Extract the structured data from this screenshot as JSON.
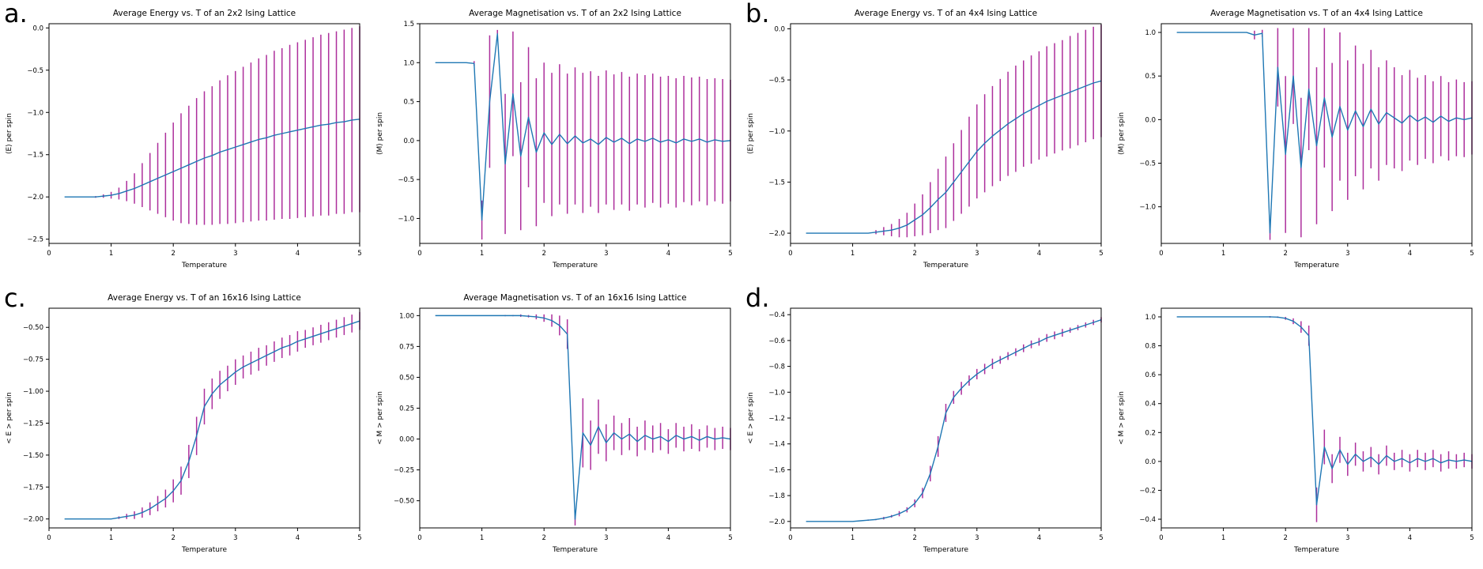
{
  "figure": {
    "description": "Ising model Monte Carlo results: average energy and magnetisation vs temperature with error bars for four lattice sizes"
  },
  "colors": {
    "line": "#1f77b4",
    "errorbar": "#ad2f9c",
    "axis": "#000000",
    "background": "#ffffff"
  },
  "panels": [
    {
      "label": "a."
    },
    {
      "label": "b."
    },
    {
      "label": "c."
    },
    {
      "label": "d."
    }
  ],
  "chart_data": [
    {
      "type": "line",
      "title": "Average Energy vs. T of an 2x2 Ising Lattice",
      "xlabel": "Temperature",
      "ylabel": "⟨E⟩ per spin",
      "legend": null,
      "grid": false,
      "xlim": [
        0,
        5
      ],
      "ylim": [
        -2.55,
        0.05
      ],
      "xticks": [
        0,
        1,
        2,
        3,
        4,
        5
      ],
      "yticks": [
        0.0,
        -0.5,
        -1.0,
        -1.5,
        -2.0,
        -2.5
      ],
      "ydec": 1,
      "x": [
        0.25,
        0.375,
        0.5,
        0.625,
        0.75,
        0.875,
        1.0,
        1.125,
        1.25,
        1.375,
        1.5,
        1.625,
        1.75,
        1.875,
        2.0,
        2.125,
        2.25,
        2.375,
        2.5,
        2.625,
        2.75,
        2.875,
        3.0,
        3.125,
        3.25,
        3.375,
        3.5,
        3.625,
        3.75,
        3.875,
        4.0,
        4.125,
        4.25,
        4.375,
        4.5,
        4.625,
        4.75,
        4.875,
        5.0
      ],
      "y": [
        -2.0,
        -2.0,
        -2.0,
        -2.0,
        -2.0,
        -1.99,
        -1.98,
        -1.96,
        -1.93,
        -1.9,
        -1.86,
        -1.82,
        -1.78,
        -1.74,
        -1.7,
        -1.66,
        -1.62,
        -1.58,
        -1.54,
        -1.51,
        -1.47,
        -1.44,
        -1.41,
        -1.38,
        -1.35,
        -1.32,
        -1.3,
        -1.27,
        -1.25,
        -1.23,
        -1.21,
        -1.19,
        -1.17,
        -1.15,
        -1.14,
        -1.12,
        -1.11,
        -1.09,
        -1.08
      ],
      "yerr": [
        0,
        0,
        0,
        0,
        0.01,
        0.02,
        0.04,
        0.07,
        0.12,
        0.18,
        0.26,
        0.34,
        0.42,
        0.5,
        0.58,
        0.65,
        0.7,
        0.75,
        0.79,
        0.82,
        0.85,
        0.88,
        0.9,
        0.92,
        0.94,
        0.96,
        0.98,
        1.0,
        1.01,
        1.03,
        1.04,
        1.05,
        1.06,
        1.07,
        1.08,
        1.08,
        1.09,
        1.09,
        1.1
      ]
    },
    {
      "type": "line",
      "title": "Average Magnetisation vs. T of an 2x2 Ising Lattice",
      "xlabel": "Temperature",
      "ylabel": "⟨M⟩ per spin",
      "legend": null,
      "grid": false,
      "xlim": [
        0,
        5
      ],
      "ylim": [
        -1.32,
        1.5
      ],
      "xticks": [
        0,
        1,
        2,
        3,
        4,
        5
      ],
      "yticks": [
        1.5,
        1.0,
        0.5,
        0.0,
        -0.5,
        -1.0
      ],
      "ydec": 1,
      "x": [
        0.25,
        0.375,
        0.5,
        0.625,
        0.75,
        0.875,
        1.0,
        1.125,
        1.25,
        1.375,
        1.5,
        1.625,
        1.75,
        1.875,
        2.0,
        2.125,
        2.25,
        2.375,
        2.5,
        2.625,
        2.75,
        2.875,
        3.0,
        3.125,
        3.25,
        3.375,
        3.5,
        3.625,
        3.75,
        3.875,
        4.0,
        4.125,
        4.25,
        4.375,
        4.5,
        4.625,
        4.75,
        4.875,
        5.0
      ],
      "y": [
        1,
        1,
        1,
        1,
        1,
        0.99,
        -1.02,
        0.5,
        1.37,
        -0.3,
        0.6,
        -0.2,
        0.3,
        -0.15,
        0.1,
        -0.05,
        0.08,
        -0.04,
        0.06,
        -0.03,
        0.02,
        -0.05,
        0.04,
        -0.02,
        0.03,
        -0.04,
        0.02,
        -0.01,
        0.03,
        -0.02,
        0.01,
        -0.03,
        0.02,
        -0.01,
        0.02,
        -0.02,
        0.01,
        -0.01,
        0.0
      ],
      "yerr": [
        0,
        0,
        0,
        0,
        0,
        0.03,
        0.25,
        0.85,
        0.05,
        0.9,
        0.8,
        0.95,
        0.9,
        0.95,
        0.9,
        0.92,
        0.9,
        0.9,
        0.88,
        0.9,
        0.87,
        0.88,
        0.86,
        0.87,
        0.85,
        0.86,
        0.84,
        0.85,
        0.83,
        0.84,
        0.82,
        0.83,
        0.81,
        0.82,
        0.8,
        0.81,
        0.79,
        0.8,
        0.78
      ]
    },
    {
      "type": "line",
      "title": "Average Energy vs. T of an 4x4 Ising Lattice",
      "xlabel": "Temperature",
      "ylabel": "⟨E⟩ per spin",
      "legend": null,
      "grid": false,
      "xlim": [
        0,
        5
      ],
      "ylim": [
        -2.1,
        0.05
      ],
      "xticks": [
        0,
        1,
        2,
        3,
        4,
        5
      ],
      "yticks": [
        0.0,
        -0.5,
        -1.0,
        -1.5,
        -2.0
      ],
      "ydec": 1,
      "x": [
        0.25,
        0.375,
        0.5,
        0.625,
        0.75,
        0.875,
        1.0,
        1.125,
        1.25,
        1.375,
        1.5,
        1.625,
        1.75,
        1.875,
        2.0,
        2.125,
        2.25,
        2.375,
        2.5,
        2.625,
        2.75,
        2.875,
        3.0,
        3.125,
        3.25,
        3.375,
        3.5,
        3.625,
        3.75,
        3.875,
        4.0,
        4.125,
        4.25,
        4.375,
        4.5,
        4.625,
        4.75,
        4.875,
        5.0
      ],
      "y": [
        -2,
        -2,
        -2,
        -2,
        -2,
        -2,
        -2,
        -2,
        -2,
        -1.99,
        -1.98,
        -1.97,
        -1.95,
        -1.92,
        -1.87,
        -1.82,
        -1.75,
        -1.67,
        -1.6,
        -1.5,
        -1.4,
        -1.3,
        -1.2,
        -1.12,
        -1.05,
        -0.99,
        -0.93,
        -0.88,
        -0.83,
        -0.79,
        -0.75,
        -0.71,
        -0.68,
        -0.65,
        -0.62,
        -0.59,
        -0.56,
        -0.53,
        -0.51
      ],
      "yerr": [
        0,
        0,
        0,
        0,
        0,
        0,
        0,
        0,
        0,
        0.02,
        0.04,
        0.06,
        0.09,
        0.12,
        0.16,
        0.2,
        0.25,
        0.3,
        0.35,
        0.38,
        0.41,
        0.44,
        0.46,
        0.48,
        0.49,
        0.5,
        0.51,
        0.52,
        0.52,
        0.53,
        0.53,
        0.54,
        0.54,
        0.54,
        0.55,
        0.55,
        0.55,
        0.55,
        0.55
      ]
    },
    {
      "type": "line",
      "title": "Average Magnetisation vs. T of an 4x4 Ising Lattice",
      "xlabel": "Temperature",
      "ylabel": "⟨M⟩ per spin",
      "legend": null,
      "grid": false,
      "xlim": [
        0,
        5
      ],
      "ylim": [
        -1.42,
        1.1
      ],
      "xticks": [
        0,
        1,
        2,
        3,
        4,
        5
      ],
      "yticks": [
        1.0,
        0.5,
        0.0,
        -0.5,
        -1.0
      ],
      "ydec": 1,
      "x": [
        0.25,
        0.375,
        0.5,
        0.625,
        0.75,
        0.875,
        1.0,
        1.125,
        1.25,
        1.375,
        1.5,
        1.625,
        1.75,
        1.875,
        2.0,
        2.125,
        2.25,
        2.375,
        2.5,
        2.625,
        2.75,
        2.875,
        3.0,
        3.125,
        3.25,
        3.375,
        3.5,
        3.625,
        3.75,
        3.875,
        4.0,
        4.125,
        4.25,
        4.375,
        4.5,
        4.625,
        4.75,
        4.875,
        5.0
      ],
      "y": [
        1,
        1,
        1,
        1,
        1,
        1,
        1,
        1,
        1,
        1,
        0.97,
        0.99,
        -1.3,
        0.6,
        -0.4,
        0.5,
        -0.55,
        0.35,
        -0.3,
        0.25,
        -0.2,
        0.15,
        -0.12,
        0.1,
        -0.08,
        0.12,
        -0.05,
        0.08,
        0.02,
        -0.04,
        0.05,
        -0.02,
        0.03,
        -0.03,
        0.04,
        -0.02,
        0.02,
        0.0,
        0.02
      ],
      "yerr": [
        0,
        0,
        0,
        0,
        0,
        0,
        0,
        0,
        0,
        0,
        0.05,
        0.04,
        0.08,
        0.45,
        0.9,
        0.55,
        0.8,
        0.7,
        0.9,
        0.8,
        0.85,
        0.85,
        0.8,
        0.75,
        0.72,
        0.68,
        0.65,
        0.6,
        0.58,
        0.55,
        0.52,
        0.5,
        0.48,
        0.47,
        0.46,
        0.45,
        0.44,
        0.43,
        0.42
      ]
    },
    {
      "type": "line",
      "title": "Average Energy vs. T of an 16x16 Ising Lattice",
      "xlabel": "Temperature",
      "ylabel": "< E >  per spin",
      "legend": null,
      "grid": false,
      "xlim": [
        0,
        5
      ],
      "ylim": [
        -2.07,
        -0.35
      ],
      "xticks": [
        0,
        1,
        2,
        3,
        4,
        5
      ],
      "yticks": [
        -0.5,
        -0.75,
        -1.0,
        -1.25,
        -1.5,
        -1.75,
        -2.0
      ],
      "ydec": 2,
      "x": [
        0.25,
        0.375,
        0.5,
        0.625,
        0.75,
        0.875,
        1.0,
        1.125,
        1.25,
        1.375,
        1.5,
        1.625,
        1.75,
        1.875,
        2.0,
        2.125,
        2.25,
        2.375,
        2.5,
        2.625,
        2.75,
        2.875,
        3.0,
        3.125,
        3.25,
        3.375,
        3.5,
        3.625,
        3.75,
        3.875,
        4.0,
        4.125,
        4.25,
        4.375,
        4.5,
        4.625,
        4.75,
        4.875,
        5.0
      ],
      "y": [
        -2,
        -2,
        -2,
        -2,
        -2,
        -2,
        -2,
        -1.99,
        -1.98,
        -1.97,
        -1.95,
        -1.92,
        -1.88,
        -1.84,
        -1.78,
        -1.7,
        -1.55,
        -1.35,
        -1.12,
        -1.02,
        -0.95,
        -0.9,
        -0.85,
        -0.81,
        -0.78,
        -0.75,
        -0.72,
        -0.69,
        -0.66,
        -0.64,
        -0.61,
        -0.59,
        -0.57,
        -0.55,
        -0.53,
        -0.51,
        -0.49,
        -0.47,
        -0.45
      ],
      "yerr": [
        0,
        0,
        0,
        0,
        0,
        0,
        0,
        0.01,
        0.02,
        0.03,
        0.04,
        0.05,
        0.06,
        0.07,
        0.09,
        0.11,
        0.13,
        0.15,
        0.14,
        0.12,
        0.11,
        0.1,
        0.1,
        0.09,
        0.09,
        0.09,
        0.08,
        0.08,
        0.08,
        0.08,
        0.08,
        0.07,
        0.07,
        0.07,
        0.07,
        0.07,
        0.07,
        0.07,
        0.07
      ]
    },
    {
      "type": "line",
      "title": "Average Magnetisation vs. T of an 16x16 Ising Lattice",
      "xlabel": "Temperature",
      "ylabel": "< M >  per spin",
      "legend": null,
      "grid": false,
      "xlim": [
        0,
        5
      ],
      "ylim": [
        -0.72,
        1.06
      ],
      "xticks": [
        0,
        1,
        2,
        3,
        4,
        5
      ],
      "yticks": [
        1.0,
        0.75,
        0.5,
        0.25,
        0.0,
        -0.25,
        -0.5
      ],
      "ydec": 2,
      "x": [
        0.25,
        0.375,
        0.5,
        0.625,
        0.75,
        0.875,
        1.0,
        1.125,
        1.25,
        1.375,
        1.5,
        1.625,
        1.75,
        1.875,
        2.0,
        2.125,
        2.25,
        2.375,
        2.5,
        2.625,
        2.75,
        2.875,
        3.0,
        3.125,
        3.25,
        3.375,
        3.5,
        3.625,
        3.75,
        3.875,
        4.0,
        4.125,
        4.25,
        4.375,
        4.5,
        4.625,
        4.75,
        4.875,
        5.0
      ],
      "y": [
        1,
        1,
        1,
        1,
        1,
        1,
        1,
        1,
        1,
        1,
        1,
        1,
        0.995,
        0.99,
        0.98,
        0.96,
        0.92,
        0.85,
        -0.65,
        0.05,
        -0.05,
        0.1,
        -0.03,
        0.05,
        0.0,
        0.04,
        -0.02,
        0.03,
        0.0,
        0.02,
        -0.02,
        0.03,
        0.0,
        0.02,
        -0.01,
        0.02,
        0.0,
        0.01,
        0.0
      ],
      "yerr": [
        0,
        0,
        0,
        0,
        0,
        0,
        0,
        0,
        0,
        0.005,
        0.005,
        0.01,
        0.01,
        0.02,
        0.03,
        0.05,
        0.08,
        0.12,
        0.05,
        0.28,
        0.2,
        0.22,
        0.15,
        0.14,
        0.13,
        0.13,
        0.12,
        0.12,
        0.11,
        0.11,
        0.1,
        0.1,
        0.1,
        0.1,
        0.09,
        0.09,
        0.09,
        0.09,
        0.09
      ]
    },
    {
      "type": "line",
      "title": "",
      "xlabel": "Temperature",
      "ylabel": "< E >  per spin",
      "legend": null,
      "grid": false,
      "xlim": [
        0,
        5
      ],
      "ylim": [
        -2.05,
        -0.35
      ],
      "xticks": [
        0,
        1,
        2,
        3,
        4,
        5
      ],
      "yticks": [
        -0.4,
        -0.6,
        -0.8,
        -1.0,
        -1.2,
        -1.4,
        -1.6,
        -1.8,
        -2.0
      ],
      "ydec": 1,
      "x": [
        0.25,
        0.375,
        0.5,
        0.625,
        0.75,
        0.875,
        1.0,
        1.125,
        1.25,
        1.375,
        1.5,
        1.625,
        1.75,
        1.875,
        2.0,
        2.125,
        2.25,
        2.375,
        2.5,
        2.625,
        2.75,
        2.875,
        3.0,
        3.125,
        3.25,
        3.375,
        3.5,
        3.625,
        3.75,
        3.875,
        4.0,
        4.125,
        4.25,
        4.375,
        4.5,
        4.625,
        4.75,
        4.875,
        5.0
      ],
      "y": [
        -2,
        -2,
        -2,
        -2,
        -2,
        -2,
        -2,
        -1.995,
        -1.99,
        -1.985,
        -1.975,
        -1.96,
        -1.94,
        -1.91,
        -1.86,
        -1.78,
        -1.63,
        -1.42,
        -1.16,
        -1.04,
        -0.97,
        -0.91,
        -0.86,
        -0.82,
        -0.78,
        -0.75,
        -0.72,
        -0.69,
        -0.66,
        -0.63,
        -0.61,
        -0.58,
        -0.56,
        -0.54,
        -0.52,
        -0.5,
        -0.48,
        -0.46,
        -0.44
      ],
      "yerr": [
        0,
        0,
        0,
        0,
        0,
        0,
        0,
        0,
        0.005,
        0.005,
        0.01,
        0.01,
        0.02,
        0.02,
        0.03,
        0.04,
        0.06,
        0.08,
        0.07,
        0.05,
        0.05,
        0.04,
        0.04,
        0.04,
        0.04,
        0.03,
        0.03,
        0.03,
        0.03,
        0.03,
        0.03,
        0.03,
        0.03,
        0.03,
        0.02,
        0.02,
        0.02,
        0.02,
        0.02
      ]
    },
    {
      "type": "line",
      "title": "",
      "xlabel": "Temperature",
      "ylabel": "< M >  per spin",
      "legend": null,
      "grid": false,
      "xlim": [
        0,
        5
      ],
      "ylim": [
        -0.46,
        1.06
      ],
      "xticks": [
        0,
        1,
        2,
        3,
        4,
        5
      ],
      "yticks": [
        1.0,
        0.8,
        0.6,
        0.4,
        0.2,
        0.0,
        -0.2,
        -0.4
      ],
      "ydec": 1,
      "x": [
        0.25,
        0.375,
        0.5,
        0.625,
        0.75,
        0.875,
        1.0,
        1.125,
        1.25,
        1.375,
        1.5,
        1.625,
        1.75,
        1.875,
        2.0,
        2.125,
        2.25,
        2.375,
        2.5,
        2.625,
        2.75,
        2.875,
        3.0,
        3.125,
        3.25,
        3.375,
        3.5,
        3.625,
        3.75,
        3.875,
        4.0,
        4.125,
        4.25,
        4.375,
        4.5,
        4.625,
        4.75,
        4.875,
        5.0
      ],
      "y": [
        1,
        1,
        1,
        1,
        1,
        1,
        1,
        1,
        1,
        1,
        1,
        1,
        1,
        0.998,
        0.99,
        0.97,
        0.93,
        0.87,
        -0.3,
        0.1,
        -0.05,
        0.08,
        -0.02,
        0.05,
        0.0,
        0.03,
        -0.02,
        0.04,
        0.0,
        0.02,
        -0.01,
        0.02,
        0.0,
        0.02,
        -0.01,
        0.01,
        0.0,
        0.01,
        0.0
      ],
      "yerr": [
        0,
        0,
        0,
        0,
        0,
        0,
        0,
        0,
        0,
        0,
        0,
        0,
        0.005,
        0.005,
        0.01,
        0.02,
        0.04,
        0.07,
        0.12,
        0.12,
        0.1,
        0.09,
        0.08,
        0.08,
        0.07,
        0.07,
        0.07,
        0.07,
        0.06,
        0.06,
        0.06,
        0.06,
        0.06,
        0.06,
        0.06,
        0.06,
        0.05,
        0.05,
        0.05
      ]
    }
  ]
}
